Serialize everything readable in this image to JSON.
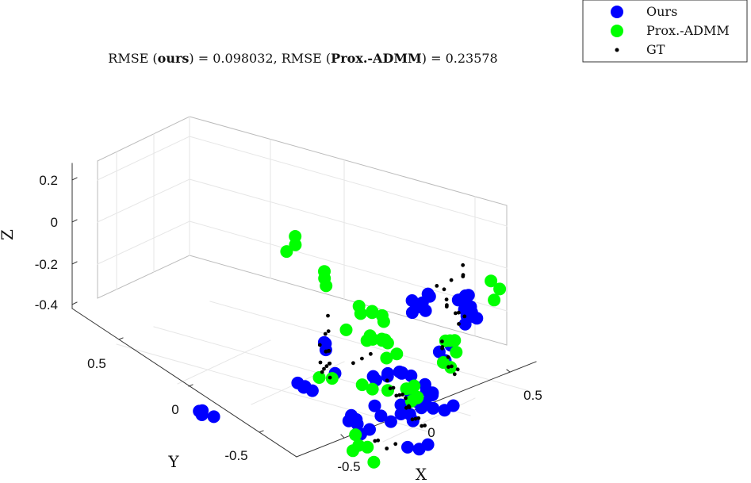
{
  "chart_data": {
    "type": "scatter",
    "title": "RMSE (ours) = 0.098032, RMSE (Prox.-ADMM) = 0.23578",
    "title_parts": {
      "p1": "RMSE (",
      "b1": "ours",
      "p2": ") = 0.098032, RMSE (",
      "b2": "Prox.-ADMM",
      "p3": ") = 0.23578"
    },
    "xlabel": "X",
    "ylabel": "Y",
    "zlabel": "Z",
    "x_ticks": [
      "-0.5",
      "0",
      "0.5"
    ],
    "y_ticks": [
      "0.5",
      "0",
      "-0.5"
    ],
    "z_ticks": [
      "0.2",
      "0",
      "-0.2",
      "-0.4"
    ],
    "x_tick_values": [
      -0.5,
      0,
      0.5
    ],
    "y_tick_values": [
      0.5,
      0,
      -0.5
    ],
    "z_tick_values": [
      0.2,
      0,
      -0.2,
      -0.4
    ],
    "grid": true,
    "box": true,
    "view": "3d",
    "legend_position": "top-right",
    "series": [
      {
        "name": "Ours",
        "color": "#0000ff",
        "marker": "circle-large",
        "points": [
          [
            -0.15,
            0.7,
            -0.02
          ],
          [
            -0.12,
            0.68,
            0.0
          ],
          [
            -0.18,
            0.72,
            -0.05
          ],
          [
            -0.08,
            0.66,
            -0.02
          ],
          [
            -0.14,
            0.74,
            0.01
          ],
          [
            -0.1,
            0.71,
            0.02
          ],
          [
            -0.2,
            0.69,
            -0.01
          ],
          [
            -0.16,
            0.65,
            -0.04
          ],
          [
            0.18,
            0.62,
            0.1
          ],
          [
            0.22,
            0.6,
            0.12
          ],
          [
            0.26,
            0.58,
            0.09
          ],
          [
            0.2,
            0.65,
            0.11
          ],
          [
            0.24,
            0.63,
            0.13
          ],
          [
            0.3,
            0.59,
            0.08
          ],
          [
            0.36,
            0.52,
            0.15
          ],
          [
            0.4,
            0.5,
            0.12
          ],
          [
            0.38,
            0.46,
            0.1
          ],
          [
            0.44,
            0.48,
            0.13
          ],
          [
            0.42,
            0.43,
            0.16
          ],
          [
            0.34,
            0.4,
            0.02
          ],
          [
            0.3,
            0.36,
            0.0
          ],
          [
            0.36,
            0.34,
            -0.02
          ],
          [
            -0.2,
            -0.12,
            -0.02
          ],
          [
            -0.17,
            -0.1,
            -0.04
          ],
          [
            -0.14,
            -0.14,
            -0.02
          ],
          [
            -0.12,
            -0.1,
            -0.05
          ],
          [
            -0.25,
            0.12,
            0.05
          ],
          [
            -0.22,
            0.1,
            0.03
          ],
          [
            -0.28,
            0.16,
            0.02
          ],
          [
            -0.1,
            0.04,
            -0.03
          ],
          [
            0.18,
            0.22,
            -0.06
          ],
          [
            0.22,
            0.18,
            -0.03
          ],
          [
            0.16,
            0.14,
            -0.04
          ],
          [
            0.1,
            0.12,
            -0.06
          ],
          [
            0.12,
            0.08,
            -0.02
          ],
          [
            0.2,
            0.1,
            0.0
          ],
          [
            0.26,
            0.12,
            0.01
          ],
          [
            0.3,
            0.16,
            -0.02
          ],
          [
            0.5,
            0.05,
            0.03
          ],
          [
            0.52,
            0.04,
            0.01
          ],
          [
            0.55,
            0.05,
            -0.01
          ],
          [
            0.58,
            0.02,
            0.02
          ],
          [
            0.5,
            -0.05,
            0.03
          ],
          [
            0.54,
            -0.06,
            0.01
          ],
          [
            0.57,
            -0.02,
            -0.01
          ],
          [
            0.48,
            -0.1,
            0.0
          ],
          [
            0.46,
            -0.15,
            -0.06
          ],
          [
            0.5,
            -0.12,
            -0.03
          ],
          [
            0.56,
            -0.12,
            -0.02
          ],
          [
            0.6,
            -0.08,
            0.0
          ],
          [
            0.66,
            -0.06,
            0.0
          ],
          [
            0.7,
            -0.02,
            -0.02
          ],
          [
            0.74,
            0.0,
            0.0
          ],
          [
            0.62,
            -0.16,
            -0.02
          ],
          [
            0.28,
            -0.26,
            -0.04
          ],
          [
            0.3,
            -0.22,
            -0.07
          ],
          [
            0.24,
            -0.2,
            -0.05
          ],
          [
            0.35,
            -0.28,
            -0.01
          ],
          [
            0.4,
            -0.3,
            -0.06
          ],
          [
            0.44,
            -0.28,
            -0.04
          ],
          [
            0.46,
            -0.22,
            0.0
          ],
          [
            0.36,
            -0.16,
            0.0
          ],
          [
            -0.6,
            -0.4,
            -0.1
          ],
          [
            -0.56,
            -0.42,
            -0.08
          ],
          [
            -0.52,
            -0.38,
            -0.12
          ],
          [
            -0.62,
            -0.36,
            -0.14
          ],
          [
            -0.66,
            -0.32,
            -0.16
          ],
          [
            0.66,
            -0.24,
            -0.1
          ],
          [
            0.7,
            -0.2,
            -0.12
          ],
          [
            0.74,
            -0.18,
            -0.1
          ]
        ]
      },
      {
        "name": "Prox.-ADMM",
        "color": "#00ff00",
        "marker": "circle-large",
        "points": [
          [
            -1.05,
            0.75,
            0.1
          ],
          [
            -1.02,
            0.72,
            0.08
          ],
          [
            -1.06,
            0.7,
            0.05
          ],
          [
            -0.88,
            0.78,
            -0.08
          ],
          [
            -0.85,
            0.76,
            -0.1
          ],
          [
            -0.9,
            0.8,
            -0.06
          ],
          [
            -0.55,
            0.68,
            -0.1
          ],
          [
            -0.52,
            0.66,
            -0.12
          ],
          [
            -0.5,
            0.72,
            -0.14
          ],
          [
            -0.48,
            0.7,
            -0.12
          ],
          [
            -0.46,
            0.75,
            -0.16
          ],
          [
            -0.44,
            0.74,
            -0.18
          ],
          [
            -0.58,
            0.62,
            -0.19
          ],
          [
            -0.4,
            0.62,
            -0.2
          ],
          [
            -0.42,
            0.6,
            -0.2
          ],
          [
            -0.38,
            0.58,
            -0.16
          ],
          [
            -0.3,
            0.58,
            -0.16
          ],
          [
            -0.26,
            0.54,
            -0.14
          ],
          [
            -0.22,
            0.52,
            -0.12
          ],
          [
            -0.6,
            0.45,
            -0.34
          ],
          [
            -0.56,
            0.5,
            -0.36
          ],
          [
            0.44,
            0.58,
            0.26
          ],
          [
            0.48,
            0.6,
            0.22
          ],
          [
            0.5,
            0.54,
            0.2
          ],
          [
            0.4,
            0.3,
            0.1
          ],
          [
            0.45,
            0.28,
            0.12
          ],
          [
            0.5,
            0.26,
            0.14
          ],
          [
            0.53,
            0.24,
            0.1
          ],
          [
            0.48,
            0.2,
            0.06
          ],
          [
            0.55,
            0.18,
            0.06
          ],
          [
            0.05,
            0.32,
            -0.04
          ],
          [
            0.0,
            0.3,
            -0.06
          ],
          [
            -0.04,
            0.35,
            -0.02
          ],
          [
            0.0,
            0.2,
            -0.16
          ],
          [
            -0.05,
            0.18,
            -0.14
          ],
          [
            0.25,
            0.18,
            -0.1
          ],
          [
            0.3,
            0.16,
            -0.08
          ],
          [
            0.34,
            0.14,
            -0.05
          ],
          [
            0.38,
            0.12,
            -0.09
          ],
          [
            0.36,
            0.1,
            -0.1
          ],
          [
            0.42,
            0.08,
            -0.06
          ],
          [
            0.2,
            0.1,
            -0.08
          ],
          [
            0.06,
            0.04,
            -0.34
          ],
          [
            0.04,
            0.02,
            -0.36
          ],
          [
            0.1,
            0.06,
            -0.35
          ],
          [
            0.0,
            0.08,
            -0.32
          ],
          [
            0.22,
            -0.02,
            -0.36
          ]
        ]
      },
      {
        "name": "GT",
        "color": "#000000",
        "marker": "dot",
        "points": [
          [
            -0.78,
            0.7,
            -0.2
          ],
          [
            -0.74,
            0.64,
            -0.25
          ],
          [
            -0.72,
            0.58,
            -0.27
          ],
          [
            -0.7,
            0.62,
            -0.22
          ],
          [
            -0.68,
            0.6,
            -0.3
          ],
          [
            -0.66,
            0.56,
            -0.28
          ],
          [
            -0.64,
            0.5,
            -0.3
          ],
          [
            -0.62,
            0.54,
            -0.26
          ],
          [
            -0.6,
            0.5,
            -0.24
          ],
          [
            -0.58,
            0.45,
            -0.31
          ],
          [
            -0.56,
            0.48,
            -0.28
          ],
          [
            -0.54,
            0.44,
            -0.27
          ],
          [
            -0.52,
            0.4,
            -0.26
          ],
          [
            -0.5,
            0.42,
            -0.24
          ],
          [
            -0.46,
            0.38,
            -0.28
          ],
          [
            -0.28,
            0.48,
            -0.18
          ],
          [
            -0.32,
            0.46,
            -0.2
          ],
          [
            -0.36,
            0.44,
            -0.22
          ],
          [
            0.02,
            0.82,
            0.14
          ],
          [
            0.04,
            0.8,
            0.1
          ],
          [
            0.06,
            0.78,
            0.12
          ],
          [
            -0.02,
            0.78,
            0.08
          ],
          [
            -0.05,
            0.76,
            0.04
          ],
          [
            -0.08,
            0.74,
            0.06
          ],
          [
            0.12,
            0.6,
            0.1
          ],
          [
            0.14,
            0.58,
            0.08
          ],
          [
            0.16,
            0.56,
            0.1
          ],
          [
            0.2,
            0.58,
            0.06
          ],
          [
            0.24,
            0.56,
            0.08
          ],
          [
            0.26,
            0.54,
            0.04
          ],
          [
            0.28,
            0.56,
            0.07
          ],
          [
            0.3,
            0.38,
            0.04
          ],
          [
            0.32,
            0.36,
            0.02
          ],
          [
            0.34,
            0.34,
            0.04
          ],
          [
            0.38,
            0.34,
            0.0
          ],
          [
            0.42,
            0.3,
            -0.02
          ],
          [
            0.46,
            0.28,
            0.0
          ],
          [
            0.5,
            0.26,
            -0.02
          ],
          [
            0.54,
            0.24,
            0.02
          ],
          [
            0.1,
            0.2,
            -0.1
          ],
          [
            0.14,
            0.18,
            -0.12
          ],
          [
            0.18,
            0.16,
            -0.1
          ],
          [
            0.22,
            0.14,
            -0.12
          ],
          [
            0.26,
            0.12,
            -0.1
          ],
          [
            0.3,
            0.1,
            -0.08
          ],
          [
            0.34,
            0.08,
            -0.08
          ],
          [
            0.38,
            0.06,
            -0.1
          ],
          [
            0.44,
            -0.02,
            -0.06
          ],
          [
            0.48,
            -0.04,
            -0.04
          ],
          [
            0.52,
            -0.06,
            -0.08
          ],
          [
            0.56,
            -0.08,
            -0.06
          ],
          [
            0.6,
            -0.1,
            -0.04
          ],
          [
            0.64,
            -0.12,
            -0.06
          ],
          [
            0.68,
            -0.14,
            -0.04
          ],
          [
            0.4,
            -0.2,
            -0.14
          ],
          [
            0.44,
            -0.22,
            -0.12
          ],
          [
            0.48,
            -0.2,
            -0.16
          ],
          [
            0.52,
            -0.18,
            -0.14
          ]
        ]
      }
    ]
  }
}
